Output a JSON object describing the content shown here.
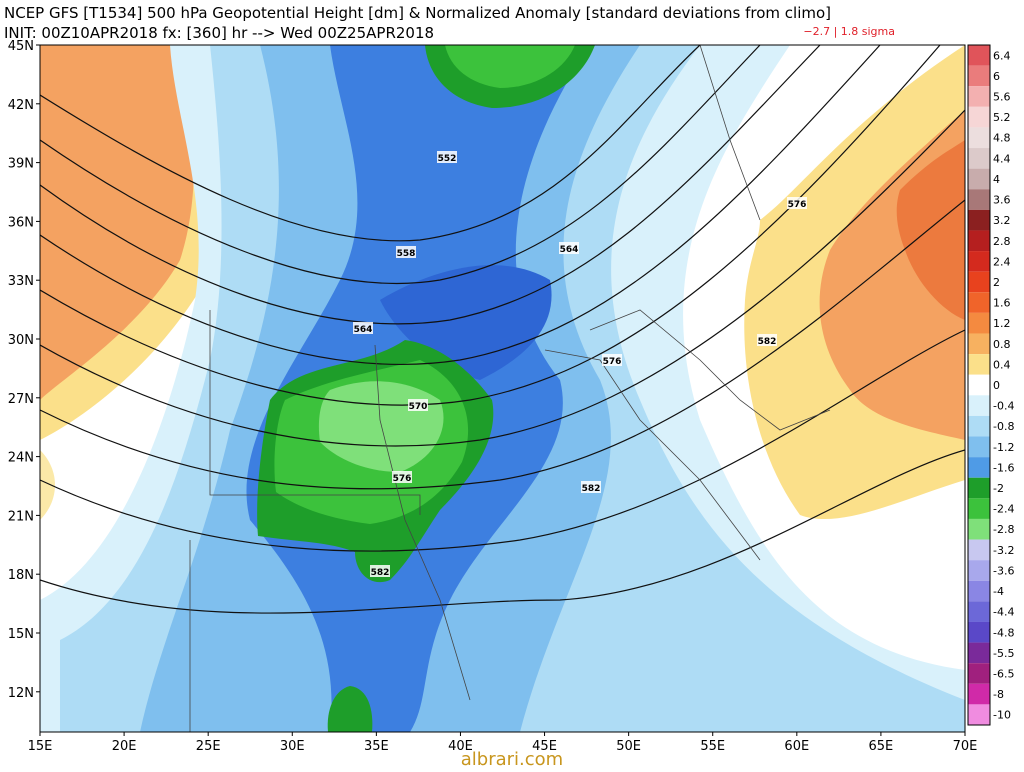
{
  "header": {
    "title": "NCEP GFS [T1534] 500 hPa Geopotential Height [dm] & Normalized Anomaly [standard deviations from climo]",
    "init": "INIT: 00Z10APR2018 fx: [360] hr --> Wed 00Z25APR2018",
    "range_note": "−2.7 | 1.8 sigma"
  },
  "map": {
    "lat_labels": [
      "45N",
      "42N",
      "39N",
      "36N",
      "33N",
      "30N",
      "27N",
      "24N",
      "21N",
      "18N",
      "15N",
      "12N"
    ],
    "lon_labels": [
      "15E",
      "20E",
      "25E",
      "30E",
      "35E",
      "40E",
      "45E",
      "50E",
      "55E",
      "60E",
      "65E",
      "70E"
    ],
    "contour_labels": [
      552,
      558,
      564,
      564,
      570,
      576,
      576,
      576,
      582,
      582,
      582
    ]
  },
  "colorbar": {
    "labels": [
      6.4,
      6,
      5.6,
      5.2,
      4.8,
      4.4,
      4,
      3.6,
      3.2,
      2.8,
      2.4,
      2,
      1.6,
      1.2,
      0.8,
      0.4,
      0,
      -0.4,
      -0.8,
      -1.2,
      -1.6,
      -2,
      -2.4,
      -2.8,
      -3.2,
      -3.6,
      -4,
      -4.4,
      -4.8,
      -5.5,
      -6.5,
      -8,
      -10
    ],
    "colors": [
      "#e0545a",
      "#ea7c7c",
      "#f3b0b0",
      "#f6d6d6",
      "#ecdede",
      "#dccaca",
      "#c8acac",
      "#a87878",
      "#8b2020",
      "#b51f1f",
      "#d42a1e",
      "#e8421e",
      "#f0642a",
      "#f48a40",
      "#f7b160",
      "#fbe08a",
      "#ffffff",
      "#d9f1fb",
      "#aedcf5",
      "#7fbfee",
      "#4f9be6",
      "#1e9e2a",
      "#3cc23c",
      "#7fe07a",
      "#c8c8f0",
      "#a8a8ec",
      "#8a86e4",
      "#6c68d8",
      "#5a48c8",
      "#7a2a9a",
      "#a0207e",
      "#d02aa8",
      "#f08ce0"
    ]
  },
  "watermark": "albrari.com"
}
